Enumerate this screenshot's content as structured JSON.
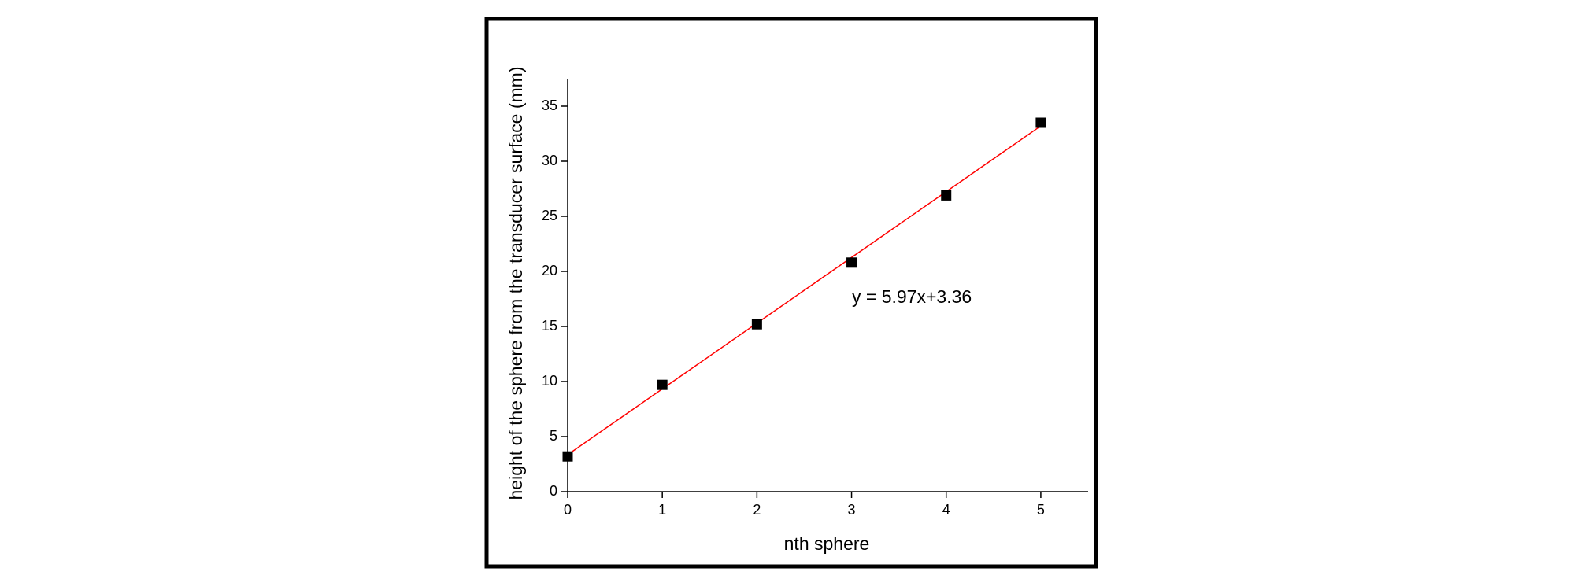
{
  "chart_data": {
    "type": "scatter",
    "x_label": "nth sphere",
    "y_label": "height of the sphere from the transducer surface (mm)",
    "annotation": "y = 5.97x+3.36",
    "x": [
      0,
      1,
      2,
      3,
      4,
      5
    ],
    "series": [
      {
        "color": "#000000",
        "values": [
          3.2,
          9.7,
          15.2,
          20.8,
          26.9,
          33.5
        ]
      }
    ],
    "fit": {
      "color": "#ff0000",
      "x": [
        0,
        5
      ],
      "values": [
        3.36,
        33.21
      ]
    },
    "xlim": [
      0,
      5.5
    ],
    "ylim": [
      0,
      37.5
    ],
    "xticks": [
      0,
      1,
      2,
      3,
      4,
      5
    ],
    "yticks": [
      0,
      5,
      10,
      15,
      20,
      25,
      30,
      35
    ],
    "grid": false
  }
}
